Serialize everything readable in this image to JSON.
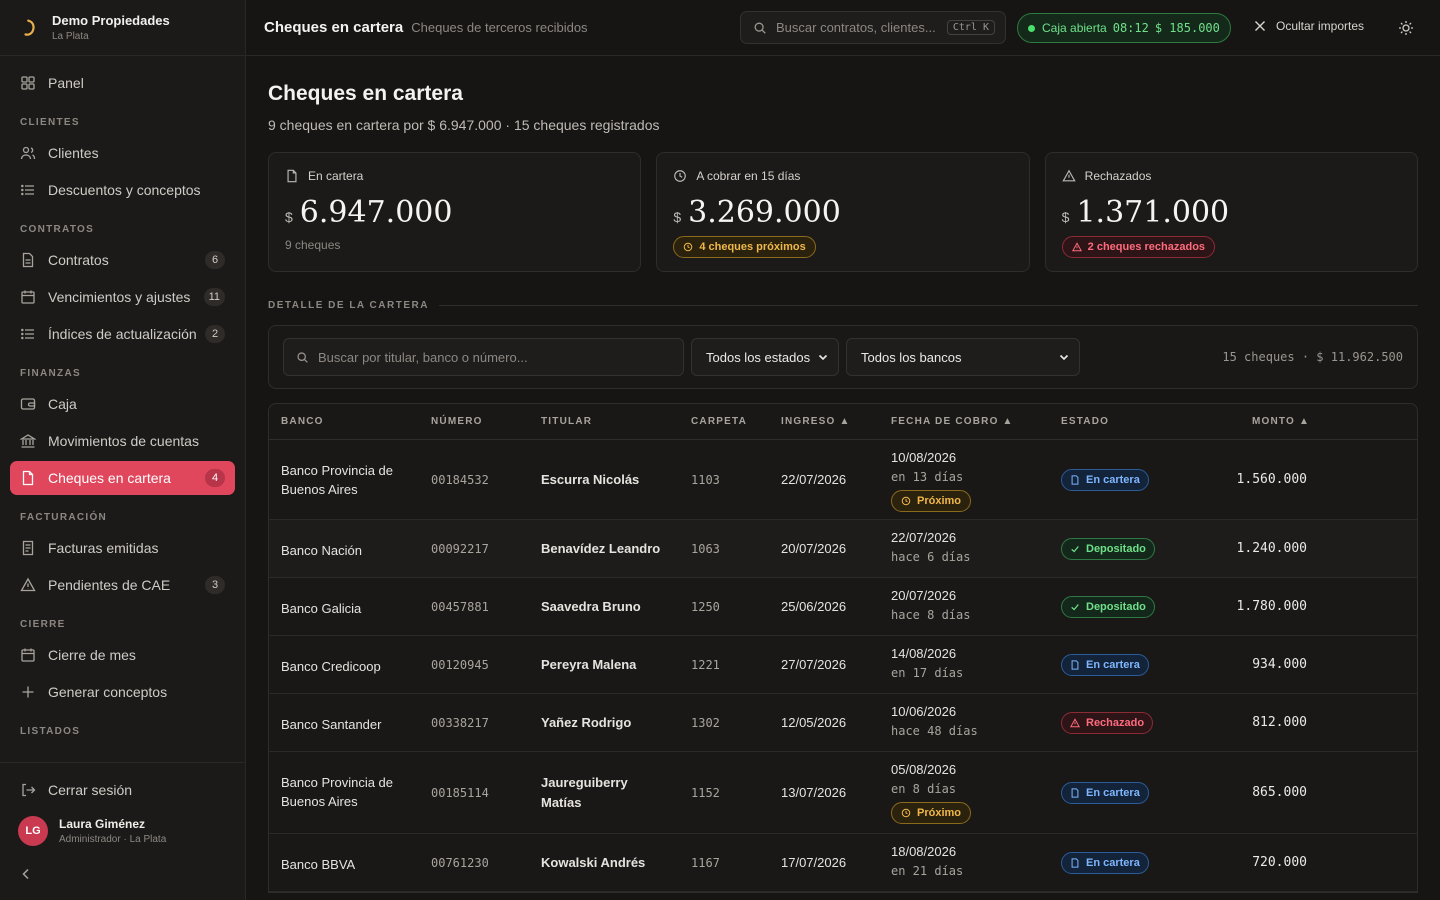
{
  "brand": {
    "name": "Demo Propiedades",
    "sub": "La Plata"
  },
  "nav": {
    "panel": "Panel",
    "sections": {
      "clientes": "CLIENTES",
      "contratos": "CONTRATOS",
      "finanzas": "FINANZAS",
      "facturacion": "FACTURACIÓN",
      "cierre": "CIERRE",
      "listados": "LISTADOS"
    },
    "items": {
      "clientes": "Clientes",
      "descuentos": "Descuentos y conceptos",
      "contratos": "Contratos",
      "contratos_badge": "6",
      "vencimientos": "Vencimientos y ajustes",
      "vencimientos_badge": "11",
      "indices": "Índices de actualización",
      "indices_badge": "2",
      "caja": "Caja",
      "movimientos": "Movimientos de cuentas",
      "cheques": "Cheques en cartera",
      "cheques_badge": "4",
      "facturas": "Facturas emitidas",
      "pendientes": "Pendientes de CAE",
      "pendientes_badge": "3",
      "cierre_mes": "Cierre de mes",
      "generar": "Generar conceptos"
    },
    "logout": "Cerrar sesión"
  },
  "user": {
    "initials": "LG",
    "name": "Laura Giménez",
    "role": "Administrador · La Plata"
  },
  "topbar": {
    "title": "Cheques en cartera",
    "subtitle": "Cheques de terceros recibidos",
    "search_placeholder": "Buscar contratos, clientes...",
    "search_kbd": "Ctrl K",
    "caja_label": "Caja abierta",
    "caja_time": "08:12",
    "caja_amount": "$ 185.000",
    "hide_amounts": "Ocultar importes"
  },
  "page": {
    "title": "Cheques en cartera",
    "subtitle": "9 cheques en cartera por $ 6.947.000 · 15 cheques registrados"
  },
  "cards": [
    {
      "label": "En cartera",
      "currency": "$",
      "value": "6.947.000",
      "foot": "9 cheques"
    },
    {
      "label": "A cobrar en 15 días",
      "currency": "$",
      "value": "3.269.000",
      "pill": "4 cheques próximos"
    },
    {
      "label": "Rechazados",
      "currency": "$",
      "value": "1.371.000",
      "pill": "2 cheques rechazados"
    }
  ],
  "detail_label": "DETALLE DE LA CARTERA",
  "filters": {
    "search_placeholder": "Buscar por titular, banco o número...",
    "estado": "Todos los estados",
    "banco": "Todos los bancos",
    "count": "15 cheques · $ 11.962.500"
  },
  "table": {
    "headers": {
      "banco": "BANCO",
      "numero": "NÚMERO",
      "titular": "TITULAR",
      "carpeta": "CARPETA",
      "ingreso": "INGRESO ▲",
      "fecha": "FECHA DE COBRO ▲",
      "estado": "ESTADO",
      "monto": "MONTO ▲"
    },
    "status_labels": {
      "cartera": "En cartera",
      "depositado": "Depositado",
      "rechazado": "Rechazado",
      "proximo": "Próximo"
    },
    "rows": [
      {
        "banco": "Banco Provincia de Buenos Aires",
        "numero": "00184532",
        "titular": "Escurra Nicolás",
        "carpeta": "1103",
        "ingreso": "22/07/2026",
        "fecha": "10/08/2026",
        "rel": "en 13 días",
        "estado": "En cartera",
        "proximo": "Próximo",
        "monto": "1.560.000"
      },
      {
        "banco": "Banco Nación",
        "numero": "00092217",
        "titular": "Benavídez Leandro",
        "carpeta": "1063",
        "ingreso": "20/07/2026",
        "fecha": "22/07/2026",
        "rel": "hace 6 días",
        "estado": "Depositado",
        "monto": "1.240.000"
      },
      {
        "banco": "Banco Galicia",
        "numero": "00457881",
        "titular": "Saavedra Bruno",
        "carpeta": "1250",
        "ingreso": "25/06/2026",
        "fecha": "20/07/2026",
        "rel": "hace 8 días",
        "estado": "Depositado",
        "monto": "1.780.000"
      },
      {
        "banco": "Banco Credicoop",
        "numero": "00120945",
        "titular": "Pereyra Malena",
        "carpeta": "1221",
        "ingreso": "27/07/2026",
        "fecha": "14/08/2026",
        "rel": "en 17 días",
        "estado": "En cartera",
        "monto": "934.000"
      },
      {
        "banco": "Banco Santander",
        "numero": "00338217",
        "titular": "Yañez Rodrigo",
        "carpeta": "1302",
        "ingreso": "12/05/2026",
        "fecha": "10/06/2026",
        "rel": "hace 48 días",
        "estado": "Rechazado",
        "monto": "812.000"
      },
      {
        "banco": "Banco Provincia de Buenos Aires",
        "numero": "00185114",
        "titular": "Jaureguiberry Matías",
        "carpeta": "1152",
        "ingreso": "13/07/2026",
        "fecha": "05/08/2026",
        "rel": "en 8 días",
        "estado": "En cartera",
        "proximo": "Próximo",
        "monto": "865.000"
      },
      {
        "banco": "Banco BBVA",
        "numero": "00761230",
        "titular": "Kowalski Andrés",
        "carpeta": "1167",
        "ingreso": "17/07/2026",
        "fecha": "18/08/2026",
        "rel": "en 21 días",
        "estado": "En cartera",
        "monto": "720.000"
      }
    ]
  }
}
